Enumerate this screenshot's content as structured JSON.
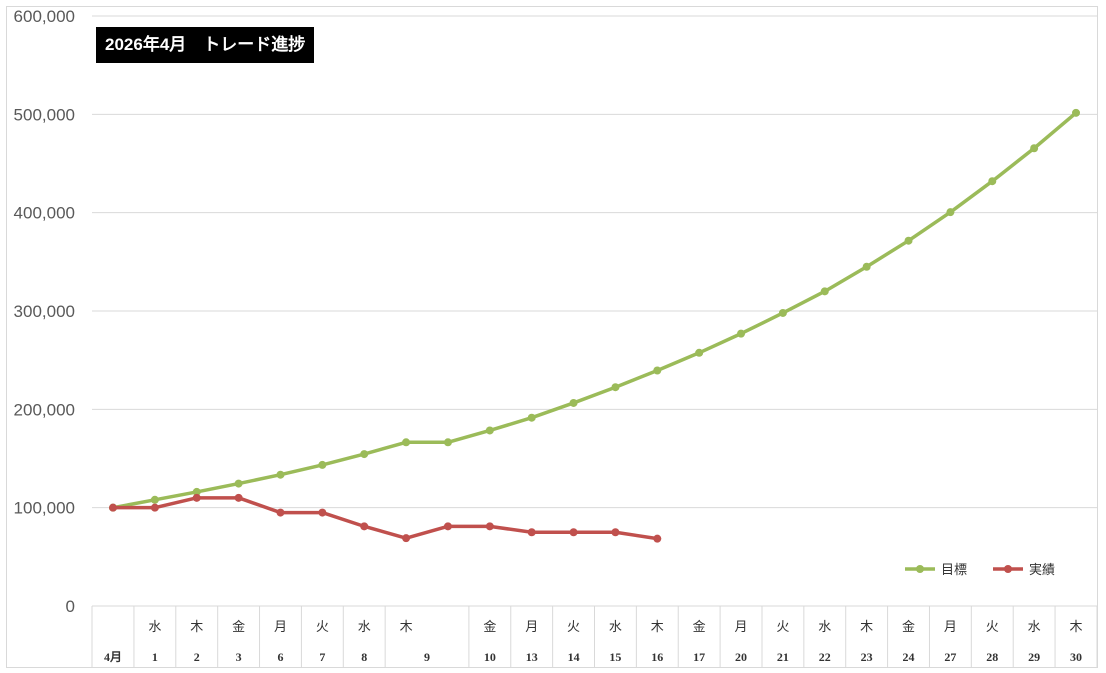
{
  "chart_data": {
    "type": "line",
    "title": "2026年4月　トレード進捗",
    "ylim": [
      0,
      600000
    ],
    "yticks": [
      "0",
      "100,000",
      "200,000",
      "300,000",
      "400,000",
      "500,000",
      "600,000"
    ],
    "grid": true,
    "legend_position": "bottom-right",
    "categories": [
      {
        "dow": "",
        "day": "4月"
      },
      {
        "dow": "水",
        "day": "1"
      },
      {
        "dow": "木",
        "day": "2"
      },
      {
        "dow": "金",
        "day": "3"
      },
      {
        "dow": "月",
        "day": "6"
      },
      {
        "dow": "火",
        "day": "7"
      },
      {
        "dow": "水",
        "day": "8"
      },
      {
        "dow": "木",
        "day": "9"
      },
      {
        "dow": "",
        "day": ""
      },
      {
        "dow": "金",
        "day": "10"
      },
      {
        "dow": "月",
        "day": "13"
      },
      {
        "dow": "火",
        "day": "14"
      },
      {
        "dow": "水",
        "day": "15"
      },
      {
        "dow": "木",
        "day": "16"
      },
      {
        "dow": "金",
        "day": "17"
      },
      {
        "dow": "月",
        "day": "20"
      },
      {
        "dow": "火",
        "day": "21"
      },
      {
        "dow": "水",
        "day": "22"
      },
      {
        "dow": "木",
        "day": "23"
      },
      {
        "dow": "金",
        "day": "24"
      },
      {
        "dow": "月",
        "day": "27"
      },
      {
        "dow": "火",
        "day": "28"
      },
      {
        "dow": "水",
        "day": "29"
      },
      {
        "dow": "木",
        "day": "30"
      }
    ],
    "series": [
      {
        "name": "目標",
        "color": "#9bbb59",
        "values": [
          100000,
          108000,
          116000,
          124500,
          133500,
          143500,
          154500,
          166500,
          166500,
          178500,
          191500,
          206500,
          222500,
          239500,
          257500,
          277000,
          298000,
          320000,
          345000,
          371500,
          400500,
          432000,
          465500,
          501500
        ]
      },
      {
        "name": "実績",
        "color": "#c0504d",
        "values": [
          100000,
          100000,
          110000,
          110000,
          95000,
          95000,
          81000,
          69000,
          81000,
          81000,
          75000,
          75000,
          75000,
          68500,
          null,
          null,
          null,
          null,
          null,
          null,
          null,
          null,
          null,
          null
        ]
      }
    ]
  }
}
